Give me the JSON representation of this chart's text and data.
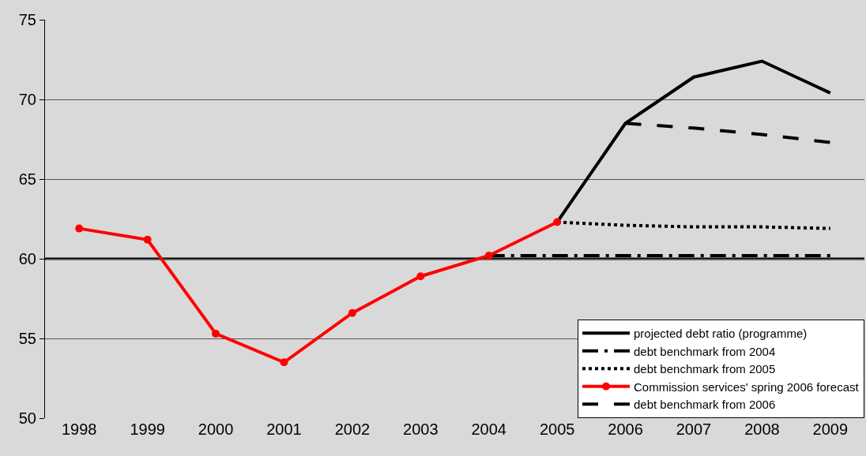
{
  "chart_data": {
    "type": "line",
    "categories": [
      "1998",
      "1999",
      "2000",
      "2001",
      "2002",
      "2003",
      "2004",
      "2005",
      "2006",
      "2007",
      "2008",
      "2009"
    ],
    "series": [
      {
        "name": "projected debt ratio (programme)",
        "color": "#000000",
        "line_style": "solid",
        "marker": "none",
        "values": [
          null,
          null,
          null,
          null,
          null,
          null,
          null,
          62.3,
          68.5,
          71.4,
          72.4,
          70.4
        ]
      },
      {
        "name": "debt benchmark from 2004",
        "color": "#000000",
        "line_style": "dashdot",
        "marker": "none",
        "values": [
          null,
          null,
          null,
          null,
          null,
          null,
          60.2,
          60.2,
          60.2,
          60.2,
          60.2,
          60.2
        ]
      },
      {
        "name": "debt benchmark from 2005",
        "color": "#000000",
        "line_style": "dotted",
        "marker": "none",
        "values": [
          null,
          null,
          null,
          null,
          null,
          null,
          null,
          62.3,
          62.1,
          62.0,
          62.0,
          61.9
        ]
      },
      {
        "name": "Commission services' spring 2006 forecast",
        "color": "#ff0000",
        "line_style": "solid",
        "marker": "circle",
        "values": [
          61.9,
          61.2,
          55.3,
          53.5,
          56.6,
          58.9,
          60.2,
          62.3,
          null,
          null,
          null,
          null
        ]
      },
      {
        "name": "debt benchmark from 2006",
        "color": "#000000",
        "line_style": "dashed",
        "marker": "none",
        "values": [
          null,
          null,
          null,
          null,
          null,
          null,
          null,
          null,
          68.5,
          68.2,
          67.8,
          67.3
        ]
      }
    ],
    "ylim": [
      50,
      75
    ],
    "yticks": [
      50,
      55,
      60,
      65,
      70,
      75
    ],
    "grid": "y",
    "legend": "bottom right",
    "ref_lines": [
      {
        "axis": "y",
        "value": 60,
        "color": "#000000"
      }
    ]
  }
}
